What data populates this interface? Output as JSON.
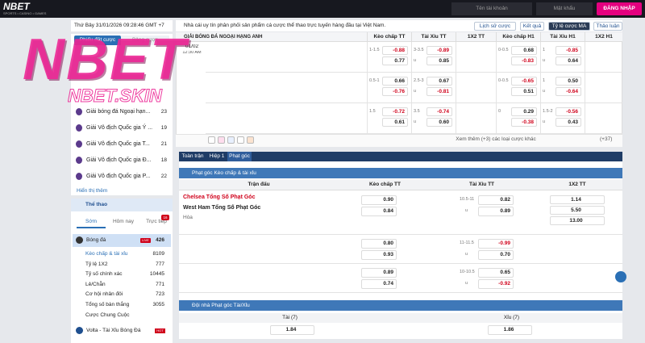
{
  "header": {
    "logo": "NBET",
    "logo_tagline": "SPORTS • CASINO • GAMES",
    "username_placeholder": "Tên tài khoản",
    "password_placeholder": "Mật khẩu",
    "login_button": "ĐĂNG NHẬP"
  },
  "watermark": {
    "logo": "NBET",
    "site": "NBET.SKIN"
  },
  "topbar": {
    "datetime": "Thứ Bảy 31/01/2026 09:28:46 GMT +7",
    "notice": "Nhà cái uy tín phân phối sản phẩm cá cược thể thao trực tuyến hàng đầu tại Việt Nam.",
    "buttons": [
      "Lịch sử cược",
      "Kết quả",
      "Tỷ lệ cược MA",
      "Thảo luận"
    ]
  },
  "sidebar": {
    "tabs": [
      "Phiếu đặt cược",
      "Bảng cược"
    ],
    "leagues": [
      {
        "name": "Giải bóng đá Ngoại hạn...",
        "count": "23"
      },
      {
        "name": "Giải Vô địch Quốc gia Ý ...",
        "count": "19"
      },
      {
        "name": "Giải Vô địch Quốc gia T...",
        "count": "21"
      },
      {
        "name": "Giải Vô địch Quốc gia Đ...",
        "count": "18"
      },
      {
        "name": "Giải Vô địch Quốc gia P...",
        "count": "22"
      }
    ],
    "show_more": "Hiển thị thêm",
    "sports_title": "Thể thao",
    "sport_tabs": [
      "Sớm",
      "Hôm nay",
      "Trực tiếp"
    ],
    "live_count": "16",
    "sport": {
      "name": "Bóng đá",
      "badge": "LIVE",
      "count": "426"
    },
    "markets": [
      {
        "name": "Kèo chấp & tài xỉu",
        "count": "8109"
      },
      {
        "name": "Tỷ lệ 1X2",
        "count": "777"
      },
      {
        "name": "Tỷ số chính xác",
        "count": "10445"
      },
      {
        "name": "Lẻ/Chẵn",
        "count": "771"
      },
      {
        "name": "Cơ hội nhân đôi",
        "count": "723"
      },
      {
        "name": "Tổng số bàn thắng",
        "count": "3055"
      },
      {
        "name": "Cược Chung Cuộc",
        "count": ""
      }
    ],
    "volta": {
      "name": "Volta - Tài Xỉu Bóng Đá",
      "badge": "HOT"
    }
  },
  "odds_table": {
    "headers": [
      "Kèo chấp TT",
      "Tài Xỉu TT",
      "1X2 TT",
      "Kèo chấp H1",
      "Tài Xỉu H1",
      "1X2 H1"
    ],
    "league": "GIẢI BÓNG ĐÁ NGOẠI HẠNG ANH",
    "date": "01/02",
    "time": "12:30 AM",
    "under_mark": "u",
    "rows": [
      {
        "hdp_line": "1-1.5",
        "hdp": [
          "-0.88",
          "0.77"
        ],
        "ou_line": "3-3.5",
        "ou": [
          "-0.89",
          "0.85"
        ],
        "h1_hdp_line": "0-0.5",
        "h1_hdp": [
          "0.68",
          "-0.83"
        ],
        "h1_ou_line": "1",
        "h1_ou": [
          "-0.85",
          "0.64"
        ]
      },
      {
        "hdp_line": "0.5-1",
        "hdp": [
          "0.66",
          "-0.76"
        ],
        "ou_line": "2.5-3",
        "ou": [
          "0.67",
          "-0.81"
        ],
        "h1_hdp_line": "0-0.5",
        "h1_hdp": [
          "-0.65",
          "0.51"
        ],
        "h1_ou_line": "1",
        "h1_ou": [
          "0.50",
          "-0.64"
        ]
      },
      {
        "hdp_line": "1.5",
        "hdp": [
          "-0.72",
          "0.61"
        ],
        "ou_line": "3.5",
        "ou": [
          "-0.74",
          "0.60"
        ],
        "h1_hdp_line": "0",
        "h1_hdp": [
          "0.29",
          "-0.38"
        ],
        "h1_ou_line": "1.5-2",
        "h1_ou": [
          "-0.56",
          "0.43"
        ]
      }
    ],
    "more": "Xem thêm (+3) các loại cược khác",
    "more_count": "(+37)"
  },
  "detail": {
    "tabs": [
      "Toàn trận",
      "Hiệp 1",
      "Phạt góc"
    ],
    "section1": "Phạt góc Kèo chấp & tài xỉu",
    "columns": [
      "Trận đấu",
      "Kèo chấp TT",
      "Tài Xỉu TT",
      "1X2 TT"
    ],
    "home": "Chelsea Tổng Số Phạt Góc",
    "away": "West Ham Tổng Số Phạt Góc",
    "draw": "Hòa",
    "x12": [
      "1.14",
      "5.50",
      "13.00"
    ],
    "rows": [
      {
        "hdp_line": "3.5",
        "hdp": [
          "0.90",
          "0.84"
        ],
        "ou_line": "10.5-11",
        "ou": [
          "0.82",
          "0.89"
        ]
      },
      {
        "hdp_line": "3-3.5",
        "hdp": [
          "0.80",
          "0.93"
        ],
        "ou_line": "11-11.5",
        "ou": [
          "-0.99",
          "0.70"
        ]
      },
      {
        "hdp_line": "3.5-4",
        "hdp": [
          "0.89",
          "0.74"
        ],
        "ou_line": "10-10.5",
        "ou": [
          "0.65",
          "-0.92"
        ]
      }
    ],
    "section2": "Đội nhà Phạt góc Tài/Xỉu",
    "over_label": "Tài (7)",
    "under_label": "Xỉu (7)",
    "over": "1.84",
    "under": "1.86"
  }
}
